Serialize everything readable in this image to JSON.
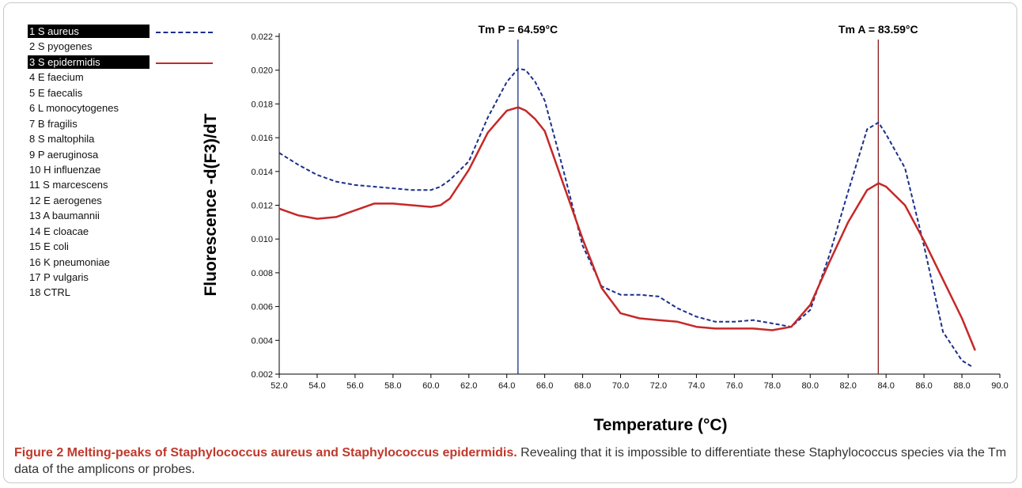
{
  "legend": {
    "items": [
      {
        "label": "1 S aureus",
        "highlight": true,
        "line": "dashed",
        "color": "#1a2f8c"
      },
      {
        "label": "2 S pyogenes"
      },
      {
        "label": "3 S epidermidis",
        "highlight": true,
        "line": "solid",
        "color": "#c62828"
      },
      {
        "label": "4 E faecium"
      },
      {
        "label": "5 E faecalis"
      },
      {
        "label": "6 L monocytogenes"
      },
      {
        "label": "7 B fragilis"
      },
      {
        "label": "8 S maltophila"
      },
      {
        "label": "9 P aeruginosa"
      },
      {
        "label": "10 H influenzae"
      },
      {
        "label": "11 S marcescens"
      },
      {
        "label": "12 E aerogenes"
      },
      {
        "label": "13 A baumannii"
      },
      {
        "label": "14 E cloacae"
      },
      {
        "label": "15 E coli"
      },
      {
        "label": "16 K pneumoniae"
      },
      {
        "label": "17 P vulgaris"
      },
      {
        "label": "18 CTRL"
      }
    ]
  },
  "caption": {
    "title": "Figure 2 Melting-peaks of Staphylococcus aureus and Staphylococcus epidermidis.",
    "body": " Revealing that it is impossible to differentiate these Staphylococcus species via the Tm data of the amplicons or probes."
  },
  "chart_data": {
    "type": "line",
    "xlabel": "Temperature (°C)",
    "ylabel": "Fluorescence -d(F3)/dT",
    "xlim": [
      52,
      90
    ],
    "ylim": [
      0.002,
      0.022
    ],
    "x_ticks": [
      "52.0",
      "54.0",
      "56.0",
      "58.0",
      "60.0",
      "62.0",
      "64.0",
      "66.0",
      "68.0",
      "70.0",
      "72.0",
      "74.0",
      "76.0",
      "78.0",
      "80.0",
      "82.0",
      "84.0",
      "86.0",
      "88.0",
      "90.0"
    ],
    "y_ticks": [
      "0.002",
      "0.004",
      "0.006",
      "0.008",
      "0.010",
      "0.012",
      "0.014",
      "0.016",
      "0.018",
      "0.020",
      "0.022"
    ],
    "grid": false,
    "series": [
      {
        "name": "1 S aureus",
        "color": "#1a2f8c",
        "style": "dashed",
        "x": [
          52.0,
          53.0,
          54.0,
          55.0,
          56.0,
          57.0,
          58.0,
          59.0,
          60.0,
          60.5,
          61.0,
          62.0,
          63.0,
          64.0,
          64.6,
          65.0,
          65.5,
          66.0,
          67.0,
          68.0,
          69.0,
          70.0,
          71.0,
          72.0,
          73.0,
          74.0,
          75.0,
          76.0,
          77.0,
          78.0,
          79.0,
          80.0,
          81.0,
          82.0,
          83.0,
          83.6,
          84.0,
          85.0,
          86.0,
          87.0,
          88.0,
          88.6
        ],
        "y": [
          0.0151,
          0.0144,
          0.0138,
          0.0134,
          0.0132,
          0.0131,
          0.013,
          0.0129,
          0.0129,
          0.0131,
          0.0135,
          0.0146,
          0.0172,
          0.0193,
          0.0201,
          0.02,
          0.0193,
          0.0182,
          0.014,
          0.0096,
          0.0072,
          0.0067,
          0.0067,
          0.0066,
          0.0059,
          0.0054,
          0.0051,
          0.0051,
          0.0052,
          0.005,
          0.0048,
          0.0058,
          0.009,
          0.0128,
          0.0165,
          0.0169,
          0.0162,
          0.0142,
          0.0096,
          0.0045,
          0.0028,
          0.0024
        ]
      },
      {
        "name": "3 S epidermidis",
        "color": "#c62828",
        "style": "solid",
        "x": [
          52.0,
          53.0,
          54.0,
          55.0,
          56.0,
          57.0,
          58.0,
          59.0,
          60.0,
          60.5,
          61.0,
          62.0,
          63.0,
          64.0,
          64.6,
          65.0,
          65.5,
          66.0,
          67.0,
          68.0,
          69.0,
          70.0,
          71.0,
          72.0,
          73.0,
          74.0,
          75.0,
          76.0,
          77.0,
          78.0,
          79.0,
          80.0,
          81.0,
          82.0,
          83.0,
          83.6,
          84.0,
          85.0,
          86.0,
          87.0,
          88.0,
          88.7
        ],
        "y": [
          0.0118,
          0.0114,
          0.0112,
          0.0113,
          0.0117,
          0.0121,
          0.0121,
          0.012,
          0.0119,
          0.012,
          0.0124,
          0.0141,
          0.0163,
          0.0176,
          0.0178,
          0.0176,
          0.0171,
          0.0164,
          0.0132,
          0.01,
          0.0071,
          0.0056,
          0.0053,
          0.0052,
          0.0051,
          0.0048,
          0.0047,
          0.0047,
          0.0047,
          0.0046,
          0.0048,
          0.0061,
          0.0086,
          0.011,
          0.0129,
          0.0133,
          0.0131,
          0.012,
          0.0099,
          0.0076,
          0.0053,
          0.0034
        ]
      }
    ],
    "markers": [
      {
        "x": 64.59,
        "label": "Tm P = 64.59°C",
        "color": "#1a2f8c"
      },
      {
        "x": 83.59,
        "label": "Tm A = 83.59°C",
        "color": "#8b1a1a"
      }
    ]
  }
}
